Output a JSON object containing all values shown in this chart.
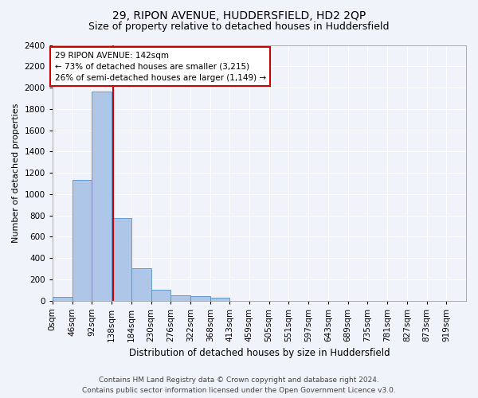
{
  "title": "29, RIPON AVENUE, HUDDERSFIELD, HD2 2QP",
  "subtitle": "Size of property relative to detached houses in Huddersfield",
  "xlabel": "Distribution of detached houses by size in Huddersfield",
  "ylabel": "Number of detached properties",
  "bin_labels": [
    "0sqm",
    "46sqm",
    "92sqm",
    "138sqm",
    "184sqm",
    "230sqm",
    "276sqm",
    "322sqm",
    "368sqm",
    "413sqm",
    "459sqm",
    "505sqm",
    "551sqm",
    "597sqm",
    "643sqm",
    "689sqm",
    "735sqm",
    "781sqm",
    "827sqm",
    "873sqm",
    "919sqm"
  ],
  "bin_edges": [
    0,
    46,
    92,
    138,
    184,
    230,
    276,
    322,
    368,
    413,
    459,
    505,
    551,
    597,
    643,
    689,
    735,
    781,
    827,
    873,
    919,
    965
  ],
  "bar_values": [
    35,
    1135,
    1960,
    775,
    300,
    100,
    48,
    40,
    25,
    0,
    0,
    0,
    0,
    0,
    0,
    0,
    0,
    0,
    0,
    0,
    0
  ],
  "bar_color": "#aec6e8",
  "bar_edge_color": "#5a8fc2",
  "property_size": 142,
  "red_line_color": "#cc0000",
  "annotation_line1": "29 RIPON AVENUE: 142sqm",
  "annotation_line2": "← 73% of detached houses are smaller (3,215)",
  "annotation_line3": "26% of semi-detached houses are larger (1,149) →",
  "annotation_box_color": "#ffffff",
  "annotation_box_edge_color": "#cc0000",
  "ylim": [
    0,
    2400
  ],
  "yticks": [
    0,
    200,
    400,
    600,
    800,
    1000,
    1200,
    1400,
    1600,
    1800,
    2000,
    2200,
    2400
  ],
  "footer_line1": "Contains HM Land Registry data © Crown copyright and database right 2024.",
  "footer_line2": "Contains public sector information licensed under the Open Government Licence v3.0.",
  "bg_color": "#f0f4fa",
  "plot_bg_color": "#f0f4fa",
  "grid_color": "#ffffff",
  "title_fontsize": 10,
  "subtitle_fontsize": 9,
  "axis_label_fontsize": 8.5,
  "tick_fontsize": 7.5,
  "annotation_fontsize": 7.5,
  "footer_fontsize": 6.5,
  "ylabel_fontsize": 8
}
